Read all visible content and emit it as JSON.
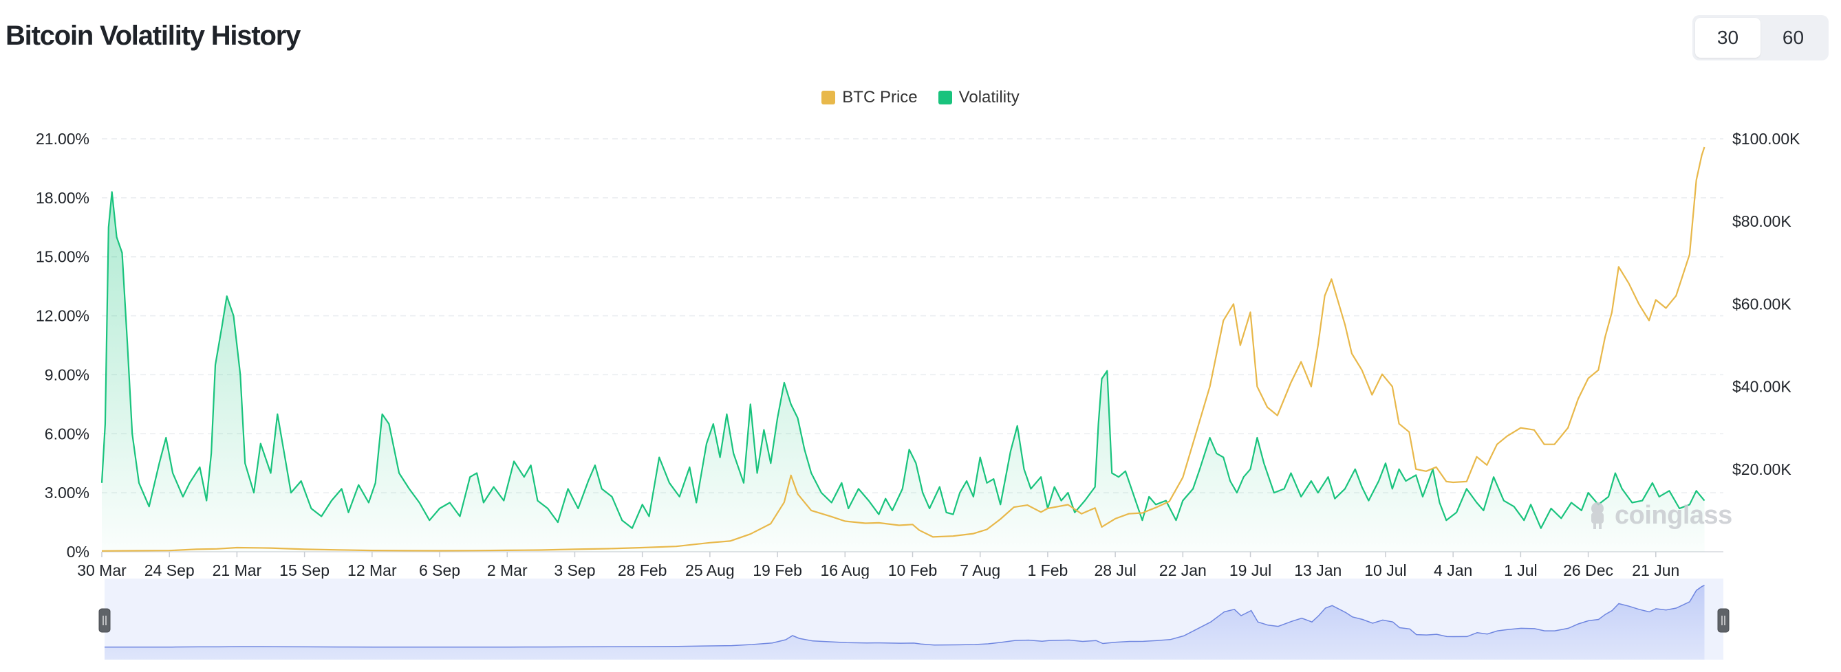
{
  "header": {
    "title": "Bitcoin Volatility History"
  },
  "window_toggle": {
    "options": [
      "30",
      "60"
    ],
    "selected": "30"
  },
  "watermark": "coinglass",
  "colors": {
    "price": "#e8b84a",
    "volatility": "#19c37d",
    "navigator": "#6f86e0",
    "grid": "#e9ecef"
  },
  "chart_data": {
    "type": "line",
    "title": "Bitcoin Volatility History",
    "legend": {
      "placement": "top-center",
      "entries": [
        "BTC Price",
        "Volatility"
      ]
    },
    "x_tick_labels": [
      "30 Mar",
      "24 Sep",
      "21 Mar",
      "15 Sep",
      "12 Mar",
      "6 Sep",
      "2 Mar",
      "3 Sep",
      "28 Feb",
      "25 Aug",
      "19 Feb",
      "16 Aug",
      "10 Feb",
      "7 Aug",
      "1 Feb",
      "28 Jul",
      "22 Jan",
      "19 Jul",
      "13 Jan",
      "10 Jul",
      "4 Jan",
      "1 Jul",
      "26 Dec",
      "21 Jun"
    ],
    "y_left": {
      "label": "",
      "range": [
        0,
        21
      ],
      "ticks": [
        "0%",
        "3.00%",
        "6.00%",
        "9.00%",
        "12.00%",
        "15.00%",
        "18.00%",
        "21.00%"
      ]
    },
    "y_right": {
      "label": "",
      "range": [
        0,
        100000
      ],
      "ticks": [
        "$20.00K",
        "$40.00K",
        "$60.00K",
        "$80.00K",
        "$100.00K"
      ]
    },
    "grid": true,
    "x_range": [
      0,
      24
    ],
    "series": [
      {
        "name": "Volatility",
        "axis": "left",
        "style": "area",
        "points": [
          [
            0,
            3.5
          ],
          [
            0.05,
            6.5
          ],
          [
            0.1,
            16.5
          ],
          [
            0.15,
            18.3
          ],
          [
            0.22,
            16
          ],
          [
            0.3,
            15.2
          ],
          [
            0.38,
            10.5
          ],
          [
            0.45,
            6
          ],
          [
            0.55,
            3.5
          ],
          [
            0.7,
            2.3
          ],
          [
            0.85,
            4.5
          ],
          [
            0.95,
            5.8
          ],
          [
            1.05,
            4
          ],
          [
            1.2,
            2.8
          ],
          [
            1.3,
            3.5
          ],
          [
            1.45,
            4.3
          ],
          [
            1.55,
            2.6
          ],
          [
            1.62,
            5
          ],
          [
            1.68,
            9.5
          ],
          [
            1.78,
            11.5
          ],
          [
            1.85,
            13
          ],
          [
            1.95,
            12
          ],
          [
            2.05,
            9
          ],
          [
            2.12,
            4.5
          ],
          [
            2.25,
            3
          ],
          [
            2.35,
            5.5
          ],
          [
            2.5,
            4
          ],
          [
            2.6,
            7
          ],
          [
            2.7,
            5
          ],
          [
            2.8,
            3
          ],
          [
            2.95,
            3.6
          ],
          [
            3.1,
            2.2
          ],
          [
            3.25,
            1.8
          ],
          [
            3.4,
            2.6
          ],
          [
            3.55,
            3.2
          ],
          [
            3.65,
            2
          ],
          [
            3.8,
            3.4
          ],
          [
            3.95,
            2.5
          ],
          [
            4.05,
            3.5
          ],
          [
            4.15,
            7
          ],
          [
            4.25,
            6.5
          ],
          [
            4.4,
            4
          ],
          [
            4.55,
            3.2
          ],
          [
            4.7,
            2.5
          ],
          [
            4.85,
            1.6
          ],
          [
            5,
            2.2
          ],
          [
            5.15,
            2.5
          ],
          [
            5.3,
            1.8
          ],
          [
            5.45,
            3.8
          ],
          [
            5.55,
            4
          ],
          [
            5.65,
            2.5
          ],
          [
            5.8,
            3.3
          ],
          [
            5.95,
            2.6
          ],
          [
            6.1,
            4.6
          ],
          [
            6.25,
            3.8
          ],
          [
            6.35,
            4.4
          ],
          [
            6.45,
            2.6
          ],
          [
            6.6,
            2.2
          ],
          [
            6.75,
            1.5
          ],
          [
            6.9,
            3.2
          ],
          [
            7.05,
            2.2
          ],
          [
            7.2,
            3.6
          ],
          [
            7.3,
            4.4
          ],
          [
            7.4,
            3.2
          ],
          [
            7.55,
            2.8
          ],
          [
            7.7,
            1.6
          ],
          [
            7.85,
            1.2
          ],
          [
            8,
            2.4
          ],
          [
            8.1,
            1.8
          ],
          [
            8.25,
            4.8
          ],
          [
            8.4,
            3.5
          ],
          [
            8.55,
            2.8
          ],
          [
            8.7,
            4.3
          ],
          [
            8.8,
            2.5
          ],
          [
            8.95,
            5.5
          ],
          [
            9.05,
            6.5
          ],
          [
            9.15,
            4.8
          ],
          [
            9.25,
            7
          ],
          [
            9.35,
            5
          ],
          [
            9.5,
            3.5
          ],
          [
            9.6,
            7.5
          ],
          [
            9.7,
            4
          ],
          [
            9.8,
            6.2
          ],
          [
            9.9,
            4.5
          ],
          [
            10.0,
            6.8
          ],
          [
            10.1,
            8.6
          ],
          [
            10.2,
            7.5
          ],
          [
            10.3,
            6.8
          ],
          [
            10.4,
            5.2
          ],
          [
            10.5,
            4
          ],
          [
            10.65,
            3
          ],
          [
            10.8,
            2.5
          ],
          [
            10.95,
            3.5
          ],
          [
            11.05,
            2.2
          ],
          [
            11.2,
            3.2
          ],
          [
            11.35,
            2.6
          ],
          [
            11.5,
            1.9
          ],
          [
            11.6,
            2.7
          ],
          [
            11.7,
            2.1
          ],
          [
            11.85,
            3.2
          ],
          [
            11.95,
            5.2
          ],
          [
            12.05,
            4.5
          ],
          [
            12.15,
            3
          ],
          [
            12.25,
            2.2
          ],
          [
            12.4,
            3.3
          ],
          [
            12.5,
            2
          ],
          [
            12.6,
            1.9
          ],
          [
            12.7,
            3
          ],
          [
            12.8,
            3.6
          ],
          [
            12.9,
            2.8
          ],
          [
            13.0,
            4.8
          ],
          [
            13.1,
            3.5
          ],
          [
            13.2,
            3.7
          ],
          [
            13.3,
            2.4
          ],
          [
            13.45,
            5.1
          ],
          [
            13.55,
            6.4
          ],
          [
            13.65,
            4.2
          ],
          [
            13.75,
            3.2
          ],
          [
            13.9,
            3.8
          ],
          [
            14.0,
            2.2
          ],
          [
            14.1,
            3.3
          ],
          [
            14.2,
            2.6
          ],
          [
            14.3,
            3
          ],
          [
            14.4,
            2
          ],
          [
            14.55,
            2.6
          ],
          [
            14.7,
            3.3
          ],
          [
            14.75,
            6.5
          ],
          [
            14.8,
            8.8
          ],
          [
            14.88,
            9.2
          ],
          [
            14.95,
            4
          ],
          [
            15.05,
            3.8
          ],
          [
            15.15,
            4.1
          ],
          [
            15.3,
            2.6
          ],
          [
            15.4,
            1.6
          ],
          [
            15.5,
            2.8
          ],
          [
            15.6,
            2.4
          ],
          [
            15.75,
            2.6
          ],
          [
            15.9,
            1.6
          ],
          [
            16.0,
            2.6
          ],
          [
            16.15,
            3.2
          ],
          [
            16.25,
            4.2
          ],
          [
            16.4,
            5.8
          ],
          [
            16.5,
            5
          ],
          [
            16.6,
            4.8
          ],
          [
            16.7,
            3.6
          ],
          [
            16.8,
            3
          ],
          [
            16.9,
            3.8
          ],
          [
            17.0,
            4.2
          ],
          [
            17.1,
            5.8
          ],
          [
            17.2,
            4.5
          ],
          [
            17.35,
            3
          ],
          [
            17.5,
            3.2
          ],
          [
            17.6,
            4
          ],
          [
            17.75,
            2.8
          ],
          [
            17.9,
            3.6
          ],
          [
            18.0,
            3
          ],
          [
            18.15,
            3.8
          ],
          [
            18.25,
            2.7
          ],
          [
            18.4,
            3.2
          ],
          [
            18.55,
            4.2
          ],
          [
            18.65,
            3.3
          ],
          [
            18.75,
            2.6
          ],
          [
            18.9,
            3.6
          ],
          [
            19.0,
            4.5
          ],
          [
            19.1,
            3.2
          ],
          [
            19.2,
            4.2
          ],
          [
            19.3,
            3.6
          ],
          [
            19.45,
            3.9
          ],
          [
            19.55,
            2.8
          ],
          [
            19.7,
            4.2
          ],
          [
            19.8,
            2.5
          ],
          [
            19.9,
            1.6
          ],
          [
            20.05,
            2
          ],
          [
            20.2,
            3.2
          ],
          [
            20.35,
            2.5
          ],
          [
            20.45,
            2.1
          ],
          [
            20.6,
            3.8
          ],
          [
            20.75,
            2.6
          ],
          [
            20.9,
            2.3
          ],
          [
            21.05,
            1.6
          ],
          [
            21.15,
            2.4
          ],
          [
            21.3,
            1.2
          ],
          [
            21.45,
            2.2
          ],
          [
            21.6,
            1.7
          ],
          [
            21.75,
            2.5
          ],
          [
            21.9,
            2.1
          ],
          [
            22.0,
            3
          ],
          [
            22.15,
            2.4
          ],
          [
            22.3,
            2.8
          ],
          [
            22.4,
            4
          ],
          [
            22.5,
            3.2
          ],
          [
            22.65,
            2.5
          ],
          [
            22.8,
            2.6
          ],
          [
            22.95,
            3.5
          ],
          [
            23.05,
            2.8
          ],
          [
            23.2,
            3.1
          ],
          [
            23.35,
            2.2
          ],
          [
            23.5,
            2.4
          ],
          [
            23.6,
            3.1
          ],
          [
            23.72,
            2.6
          ]
        ]
      },
      {
        "name": "BTC Price",
        "axis": "right",
        "style": "line",
        "points": [
          [
            0,
            200
          ],
          [
            0.5,
            250
          ],
          [
            1,
            300
          ],
          [
            1.4,
            600
          ],
          [
            1.7,
            700
          ],
          [
            2,
            1000
          ],
          [
            2.5,
            900
          ],
          [
            3,
            600
          ],
          [
            3.5,
            450
          ],
          [
            4,
            320
          ],
          [
            4.5,
            260
          ],
          [
            5,
            250
          ],
          [
            5.5,
            280
          ],
          [
            6,
            350
          ],
          [
            6.5,
            420
          ],
          [
            7,
            600
          ],
          [
            7.5,
            750
          ],
          [
            8,
            1000
          ],
          [
            8.5,
            1300
          ],
          [
            9.0,
            2200
          ],
          [
            9.3,
            2600
          ],
          [
            9.6,
            4300
          ],
          [
            9.9,
            6800
          ],
          [
            10.1,
            12000
          ],
          [
            10.2,
            18500
          ],
          [
            10.3,
            14000
          ],
          [
            10.5,
            10000
          ],
          [
            10.8,
            8500
          ],
          [
            11,
            7400
          ],
          [
            11.3,
            6900
          ],
          [
            11.5,
            7000
          ],
          [
            11.8,
            6400
          ],
          [
            12,
            6600
          ],
          [
            12.1,
            5200
          ],
          [
            12.3,
            3600
          ],
          [
            12.6,
            3800
          ],
          [
            12.9,
            4400
          ],
          [
            13.1,
            5400
          ],
          [
            13.3,
            7900
          ],
          [
            13.5,
            10800
          ],
          [
            13.7,
            11300
          ],
          [
            13.9,
            9600
          ],
          [
            14.0,
            10500
          ],
          [
            14.3,
            11400
          ],
          [
            14.5,
            9200
          ],
          [
            14.7,
            10600
          ],
          [
            14.8,
            6000
          ],
          [
            15,
            8000
          ],
          [
            15.2,
            9200
          ],
          [
            15.4,
            9400
          ],
          [
            15.6,
            10700
          ],
          [
            15.8,
            12200
          ],
          [
            16.0,
            18000
          ],
          [
            16.2,
            29000
          ],
          [
            16.4,
            40000
          ],
          [
            16.6,
            56000
          ],
          [
            16.75,
            60000
          ],
          [
            16.85,
            50000
          ],
          [
            17.0,
            58000
          ],
          [
            17.1,
            40000
          ],
          [
            17.25,
            35000
          ],
          [
            17.4,
            33000
          ],
          [
            17.6,
            41000
          ],
          [
            17.75,
            46000
          ],
          [
            17.9,
            40000
          ],
          [
            18.0,
            50000
          ],
          [
            18.1,
            62000
          ],
          [
            18.2,
            66000
          ],
          [
            18.4,
            55000
          ],
          [
            18.5,
            48000
          ],
          [
            18.65,
            44000
          ],
          [
            18.8,
            38000
          ],
          [
            18.95,
            43000
          ],
          [
            19.1,
            40000
          ],
          [
            19.2,
            31000
          ],
          [
            19.35,
            29000
          ],
          [
            19.45,
            20000
          ],
          [
            19.6,
            19500
          ],
          [
            19.75,
            20500
          ],
          [
            19.9,
            17000
          ],
          [
            20.0,
            16800
          ],
          [
            20.2,
            17000
          ],
          [
            20.35,
            23000
          ],
          [
            20.5,
            21000
          ],
          [
            20.65,
            26000
          ],
          [
            20.8,
            28000
          ],
          [
            21.0,
            30000
          ],
          [
            21.2,
            29500
          ],
          [
            21.35,
            26000
          ],
          [
            21.5,
            26000
          ],
          [
            21.7,
            30000
          ],
          [
            21.85,
            37000
          ],
          [
            22.0,
            42000
          ],
          [
            22.15,
            44000
          ],
          [
            22.25,
            52000
          ],
          [
            22.35,
            58000
          ],
          [
            22.45,
            69000
          ],
          [
            22.6,
            65000
          ],
          [
            22.75,
            60000
          ],
          [
            22.9,
            56000
          ],
          [
            23.0,
            61000
          ],
          [
            23.15,
            59000
          ],
          [
            23.3,
            62000
          ],
          [
            23.4,
            67000
          ],
          [
            23.5,
            72000
          ],
          [
            23.6,
            90000
          ],
          [
            23.68,
            96000
          ],
          [
            23.72,
            98000
          ]
        ]
      }
    ]
  }
}
